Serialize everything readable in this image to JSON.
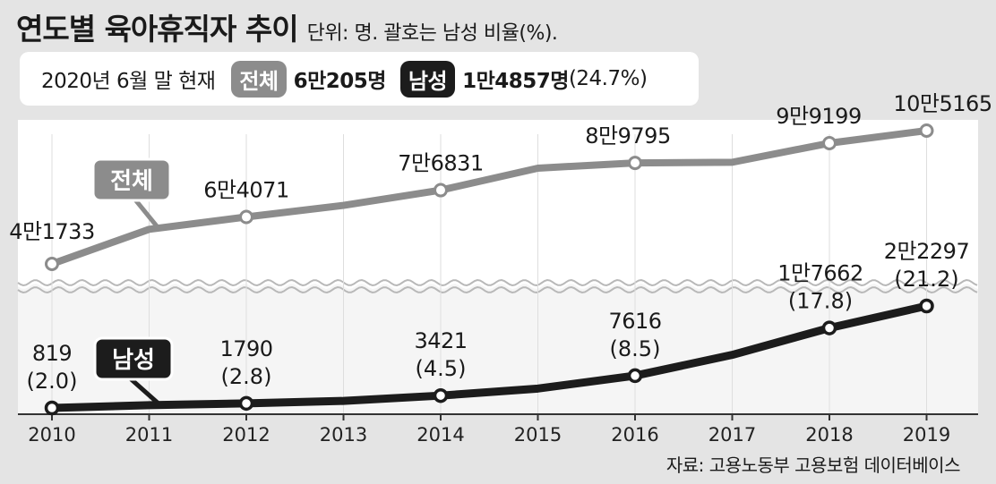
{
  "title": "연도별 육아휴직자 추이",
  "unit_note": "단위: 명. 괄호는 남성 비율(%).",
  "summary": {
    "date": "2020년 6월 말 현재",
    "total_label": "전체",
    "total_value": "6만205명",
    "male_label": "남성",
    "male_value": "1만4857명",
    "male_pct": "(24.7%)"
  },
  "source": "자료: 고용노동부 고용보험 데이터베이스",
  "colors": {
    "total": "#8c8c8c",
    "male": "#1c1c1c",
    "background": "#e4e4e4"
  },
  "chart_data": {
    "type": "line",
    "categories": [
      "2010",
      "2011",
      "2012",
      "2013",
      "2014",
      "2015",
      "2016",
      "2017",
      "2018",
      "2019"
    ],
    "series": [
      {
        "name": "전체",
        "values": [
          41733,
          58200,
          64071,
          69600,
          76831,
          87300,
          89795,
          90100,
          99199,
          105165
        ],
        "point_labels": [
          "4만1733",
          "",
          "6만4071",
          "",
          "7만6831",
          "",
          "8만9795",
          "",
          "9만9199",
          "10만5165"
        ]
      },
      {
        "name": "남성",
        "values": [
          819,
          1400,
          1790,
          2300,
          3421,
          4900,
          7616,
          12000,
          17662,
          22297
        ],
        "point_labels": [
          "819",
          "",
          "1790",
          "",
          "3421",
          "",
          "7616",
          "",
          "1만7662",
          "2만2297"
        ],
        "pct_labels": [
          "(2.0)",
          "",
          "(2.8)",
          "",
          "(4.5)",
          "",
          "(8.5)",
          "",
          "(17.8)",
          "(21.2)"
        ]
      }
    ],
    "marker_years": [
      "2010",
      "2012",
      "2014",
      "2016",
      "2018",
      "2019"
    ],
    "axis_break": true,
    "grid": false,
    "legend": "inline"
  }
}
